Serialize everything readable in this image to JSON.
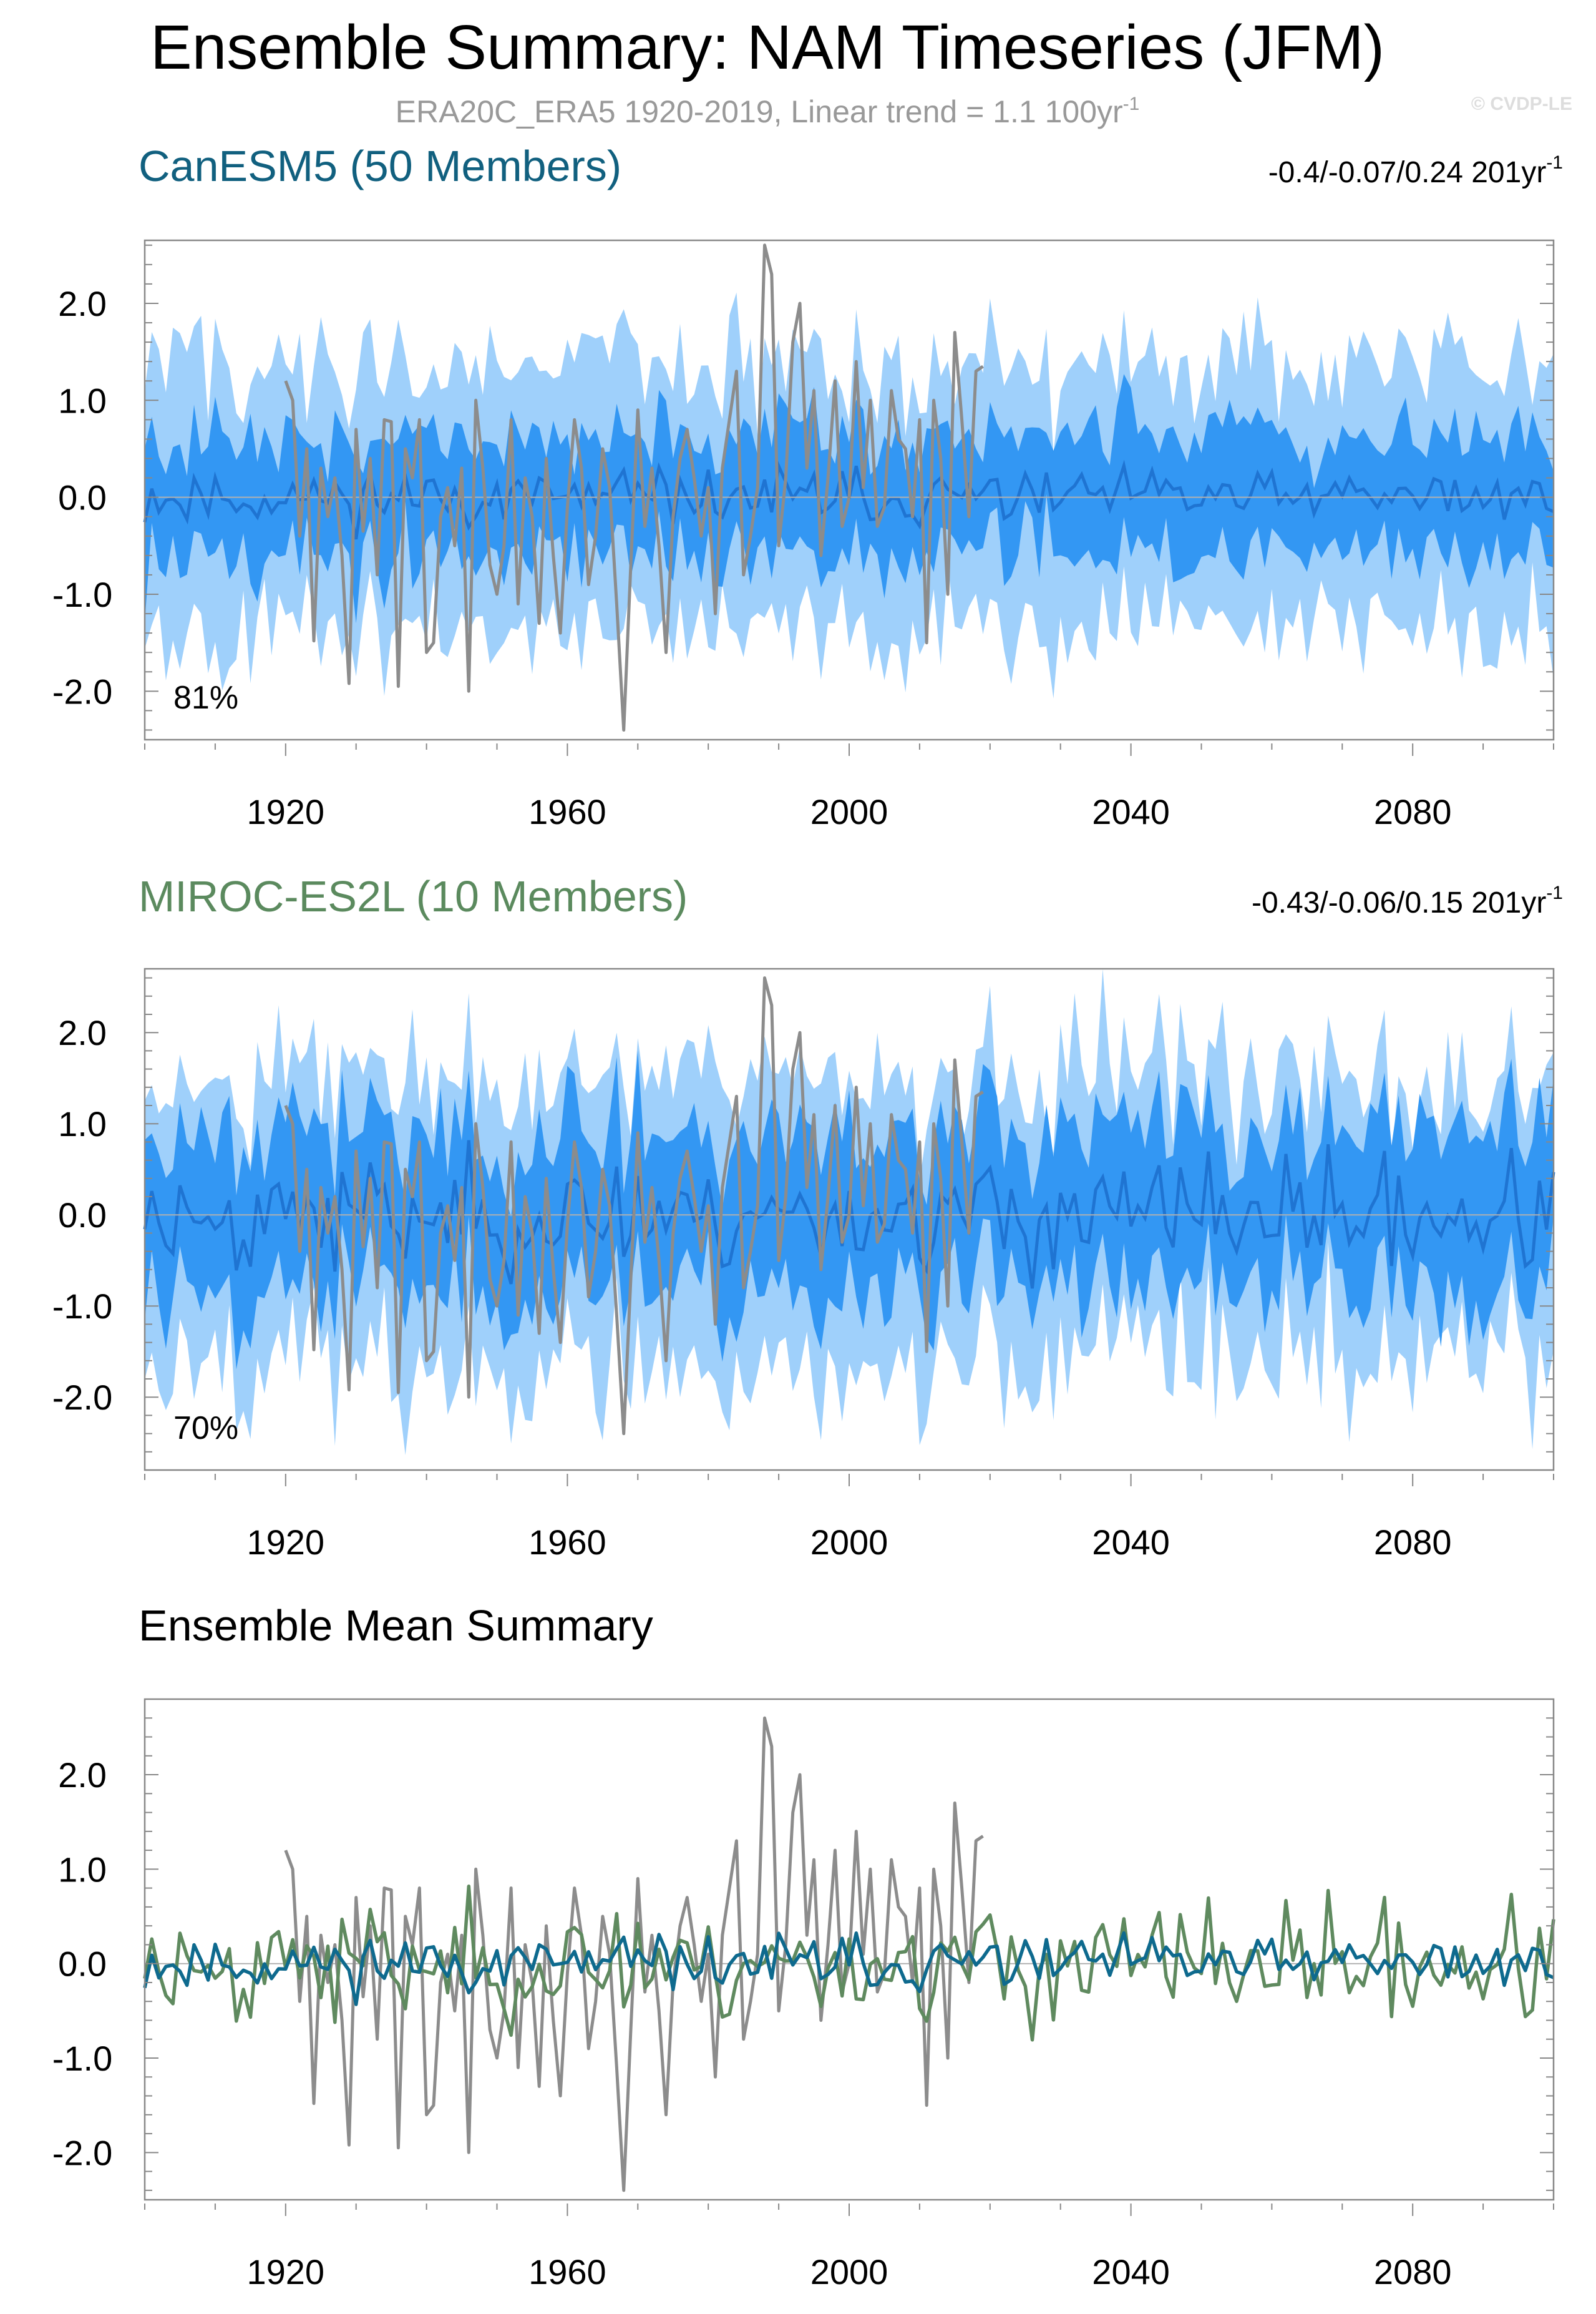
{
  "title": "Ensemble Summary: NAM Timeseries (JFM)",
  "subtitle": "ERA20C_ERA5 1920-2019, Linear trend = 1.1 100yr",
  "subtitle_sup": "-1",
  "credit": "© CVDP-LE",
  "colors": {
    "canesm_title": "#11607f",
    "miroc_title": "#5b8a5e",
    "band_outer": "#9fd0fb",
    "band_inner": "#3397f3",
    "band_mean": "#1f74d2",
    "obs": "#8c8c8c",
    "canesm_mean": "#0e6a8e",
    "miroc_mean": "#5f8a5f",
    "axis": "#888888"
  },
  "panels": [
    {
      "title": "CanESM5 (50 Members)",
      "trend": "-0.4/-0.07/0.24 201yr",
      "trend_sup": "-1",
      "percent": "81%"
    },
    {
      "title": "MIROC-ES2L (10 Members)",
      "trend": "-0.43/-0.06/0.15 201yr",
      "trend_sup": "-1",
      "percent": "70%"
    },
    {
      "title": "Ensemble Mean Summary"
    }
  ],
  "chart_data": [
    {
      "type": "area",
      "title": "CanESM5 (50 Members)",
      "x_range": [
        1900,
        2100
      ],
      "ylim": [
        -2.5,
        2.65
      ],
      "x_ticks": [
        "1920",
        "1960",
        "2000",
        "2040",
        "2080"
      ],
      "y_ticks": [
        "2.0",
        "1.0",
        "0.0",
        "-1.0",
        "-2.0"
      ],
      "percentile_bands": {
        "outer": [
          -1.35,
          1.35
        ],
        "inner": [
          -0.58,
          0.62
        ]
      },
      "ensemble_mean_amplitude": 0.14,
      "observations": {
        "name": "ERA20C_ERA5",
        "start_year": 1920,
        "values": [
          1.2,
          1.0,
          -0.4,
          0.5,
          -1.48,
          0.3,
          -0.2,
          0.2,
          -0.6,
          -1.92,
          0.7,
          -0.35,
          0.4,
          -0.8,
          0.8,
          0.78,
          -1.95,
          0.5,
          0.2,
          0.8,
          -1.6,
          -1.5,
          -0.2,
          0.1,
          -0.5,
          0.3,
          -2.0,
          1.0,
          0.3,
          -0.7,
          -1.0,
          -0.5,
          0.8,
          -1.1,
          0.2,
          -0.2,
          -1.3,
          0.4,
          -0.6,
          -1.4,
          -0.1,
          0.8,
          0.3,
          -0.9,
          -0.4,
          0.5,
          0.1,
          -1.1,
          -2.4,
          -0.7,
          0.9,
          -0.3,
          0.3,
          -0.5,
          -1.6,
          -0.2,
          0.4,
          0.7,
          0.2,
          -0.4,
          0.1,
          -1.2,
          0.3,
          0.8,
          1.3,
          -0.8,
          -0.4,
          0.1,
          2.6,
          2.3,
          -0.5,
          0.2,
          1.6,
          2.0,
          0.3,
          1.1,
          -0.6,
          0.2,
          1.2,
          -0.3,
          0.0,
          1.4,
          0.1,
          1.0,
          -0.3,
          -0.1,
          1.1,
          0.6,
          0.5,
          -0.2,
          0.8,
          -1.5,
          1.0,
          0.4,
          -1.0,
          1.7,
          0.8,
          -0.2,
          1.3,
          1.35
        ]
      }
    },
    {
      "type": "area",
      "title": "MIROC-ES2L (10 Members)",
      "x_range": [
        1900,
        2100
      ],
      "ylim": [
        -2.8,
        2.7
      ],
      "x_ticks": [
        "1920",
        "1960",
        "2000",
        "2040",
        "2080"
      ],
      "y_ticks": [
        "2.0",
        "1.0",
        "0.0",
        "-1.0",
        "-2.0"
      ],
      "percentile_bands": {
        "outer": [
          -1.6,
          1.5
        ],
        "inner": [
          -0.8,
          0.9
        ]
      },
      "ensemble_mean_amplitude": 0.3
    },
    {
      "type": "line",
      "title": "Ensemble Mean Summary",
      "x_range": [
        1900,
        2100
      ],
      "ylim": [
        -2.5,
        2.8
      ],
      "x_ticks": [
        "1920",
        "1960",
        "2000",
        "2040",
        "2080"
      ],
      "y_ticks": [
        "2.0",
        "1.0",
        "0.0",
        "-1.0",
        "-2.0"
      ],
      "series": [
        {
          "name": "ERA20C_ERA5",
          "start_year": 1920
        },
        {
          "name": "CanESM5 ensemble mean",
          "start_year": 1900
        },
        {
          "name": "MIROC-ES2L ensemble mean",
          "start_year": 1900
        }
      ]
    }
  ]
}
